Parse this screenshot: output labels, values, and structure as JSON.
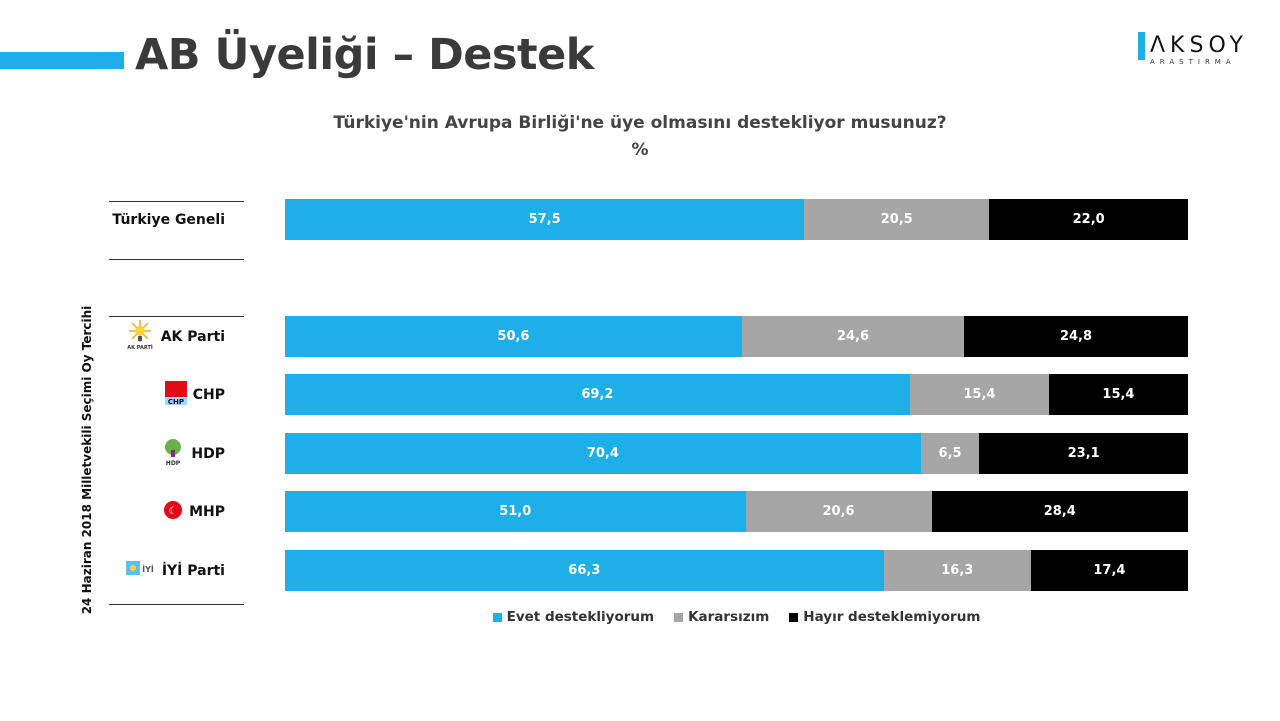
{
  "title": "AB Üyeliği – Destek",
  "logo": {
    "name": "AKSOY",
    "sub": "ARASTIRMA"
  },
  "chart_data": {
    "type": "bar",
    "orientation": "horizontal",
    "stacked": true,
    "title": "Türkiye'nin Avrupa Birliği'ne üye olmasını destekliyor musunuz?",
    "subtitle": "%",
    "group_label": "24 Haziran 2018 Milletvekili Seçimi Oy Tercihi",
    "categories": [
      "Türkiye Geneli",
      "AK Parti",
      "CHP",
      "HDP",
      "MHP",
      "İYİ Parti"
    ],
    "series": [
      {
        "name": "Evet destekliyorum",
        "color": "#1eaee8",
        "values": [
          57.5,
          50.6,
          69.2,
          70.4,
          51.0,
          66.3
        ],
        "labels": [
          "57,5",
          "50,6",
          "69,2",
          "70,4",
          "51,0",
          "66,3"
        ]
      },
      {
        "name": "Kararsızım",
        "color": "#a6a6a6",
        "values": [
          20.5,
          24.6,
          15.4,
          6.5,
          20.6,
          16.3
        ],
        "labels": [
          "20,5",
          "24,6",
          "15,4",
          "6,5",
          "20,6",
          "16,3"
        ]
      },
      {
        "name": "Hayır desteklemiyorum",
        "color": "#000000",
        "values": [
          22.0,
          24.8,
          15.4,
          23.1,
          28.4,
          17.4
        ],
        "labels": [
          "22,0",
          "24,8",
          "15,4",
          "23,1",
          "28,4",
          "17,4"
        ]
      }
    ],
    "xlim": [
      0,
      100
    ],
    "legend": "bottom",
    "grid": false
  },
  "party_logos": [
    "ak-parti-logo",
    "chp-logo",
    "hdp-logo",
    "mhp-logo",
    "iyi-parti-logo"
  ]
}
